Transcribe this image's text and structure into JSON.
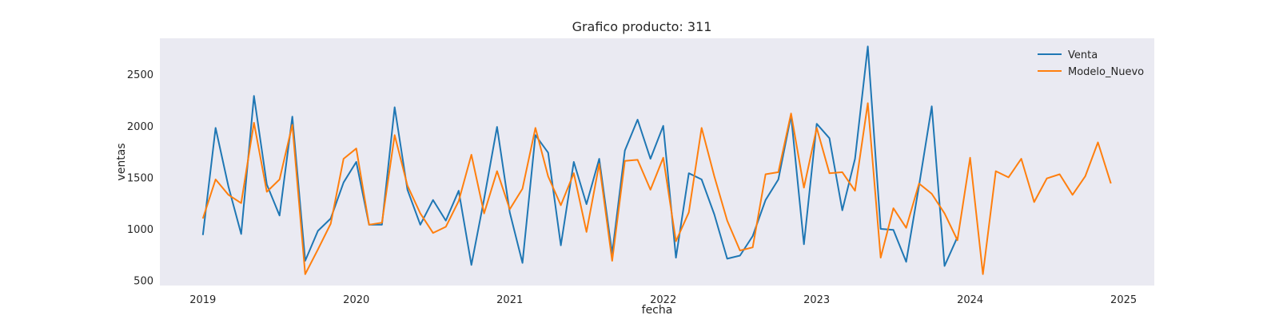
{
  "chart_data": {
    "type": "line",
    "title": "Grafico producto: 311",
    "xlabel": "fecha",
    "ylabel": "ventas",
    "xlim": [
      2018.72,
      2025.2
    ],
    "ylim": [
      450,
      2850
    ],
    "xticks": [
      2019,
      2020,
      2021,
      2022,
      2023,
      2024,
      2025
    ],
    "xtick_labels": [
      "2019",
      "2020",
      "2021",
      "2022",
      "2023",
      "2024",
      "2025"
    ],
    "yticks": [
      500,
      1000,
      1500,
      2000,
      2500
    ],
    "ytick_labels": [
      "500",
      "1000",
      "1500",
      "2000",
      "2500"
    ],
    "legend_position": "top-right",
    "background": "#eaeaf2",
    "series": [
      {
        "name": "Venta",
        "color": "#1f77b4",
        "x": [
          2019.0,
          2019.083,
          2019.167,
          2019.25,
          2019.333,
          2019.417,
          2019.5,
          2019.583,
          2019.667,
          2019.75,
          2019.833,
          2019.917,
          2020.0,
          2020.083,
          2020.167,
          2020.25,
          2020.333,
          2020.417,
          2020.5,
          2020.583,
          2020.667,
          2020.75,
          2020.833,
          2020.917,
          2021.0,
          2021.083,
          2021.167,
          2021.25,
          2021.333,
          2021.417,
          2021.5,
          2021.583,
          2021.667,
          2021.75,
          2021.833,
          2021.917,
          2022.0,
          2022.083,
          2022.167,
          2022.25,
          2022.333,
          2022.417,
          2022.5,
          2022.583,
          2022.667,
          2022.75,
          2022.833,
          2022.917,
          2023.0,
          2023.083,
          2023.167,
          2023.25,
          2023.333,
          2023.417,
          2023.5,
          2023.583,
          2023.667,
          2023.75,
          2023.833,
          2023.917
        ],
        "values": [
          940,
          1980,
          1410,
          950,
          2290,
          1430,
          1130,
          2090,
          690,
          980,
          1100,
          1450,
          1650,
          1040,
          1040,
          2180,
          1380,
          1040,
          1280,
          1080,
          1370,
          650,
          1290,
          1990,
          1160,
          670,
          1910,
          1740,
          840,
          1650,
          1240,
          1680,
          760,
          1760,
          2060,
          1680,
          2000,
          720,
          1540,
          1480,
          1140,
          710,
          740,
          930,
          1280,
          1480,
          2100,
          850,
          2020,
          1880,
          1180,
          1680,
          2770,
          1000,
          990,
          680,
          1420,
          2190,
          640,
          920
        ]
      },
      {
        "name": "Modelo_Nuevo",
        "color": "#ff7f0e",
        "x": [
          2019.0,
          2019.083,
          2019.167,
          2019.25,
          2019.333,
          2019.417,
          2019.5,
          2019.583,
          2019.667,
          2019.75,
          2019.833,
          2019.917,
          2020.0,
          2020.083,
          2020.167,
          2020.25,
          2020.333,
          2020.417,
          2020.5,
          2020.583,
          2020.667,
          2020.75,
          2020.833,
          2020.917,
          2021.0,
          2021.083,
          2021.167,
          2021.25,
          2021.333,
          2021.417,
          2021.5,
          2021.583,
          2021.667,
          2021.75,
          2021.833,
          2021.917,
          2022.0,
          2022.083,
          2022.167,
          2022.25,
          2022.333,
          2022.417,
          2022.5,
          2022.583,
          2022.667,
          2022.75,
          2022.833,
          2022.917,
          2023.0,
          2023.083,
          2023.167,
          2023.25,
          2023.333,
          2023.417,
          2023.5,
          2023.583,
          2023.667,
          2023.75,
          2023.833,
          2023.917,
          2024.0,
          2024.083,
          2024.167,
          2024.25,
          2024.333,
          2024.417,
          2024.5,
          2024.583,
          2024.667,
          2024.75,
          2024.833,
          2024.917
        ],
        "values": [
          1100,
          1480,
          1330,
          1250,
          2030,
          1360,
          1480,
          2010,
          560,
          800,
          1050,
          1680,
          1780,
          1040,
          1060,
          1910,
          1420,
          1150,
          960,
          1020,
          1270,
          1720,
          1150,
          1560,
          1190,
          1390,
          1980,
          1510,
          1230,
          1540,
          970,
          1630,
          690,
          1660,
          1670,
          1380,
          1690,
          880,
          1160,
          1980,
          1510,
          1080,
          790,
          820,
          1530,
          1550,
          2120,
          1400,
          1980,
          1540,
          1550,
          1370,
          2220,
          720,
          1200,
          1010,
          1440,
          1340,
          1150,
          890,
          1690,
          560,
          1560,
          1500,
          1680,
          1260,
          1490,
          1530,
          1330,
          1510,
          1840,
          1440
        ]
      }
    ]
  }
}
